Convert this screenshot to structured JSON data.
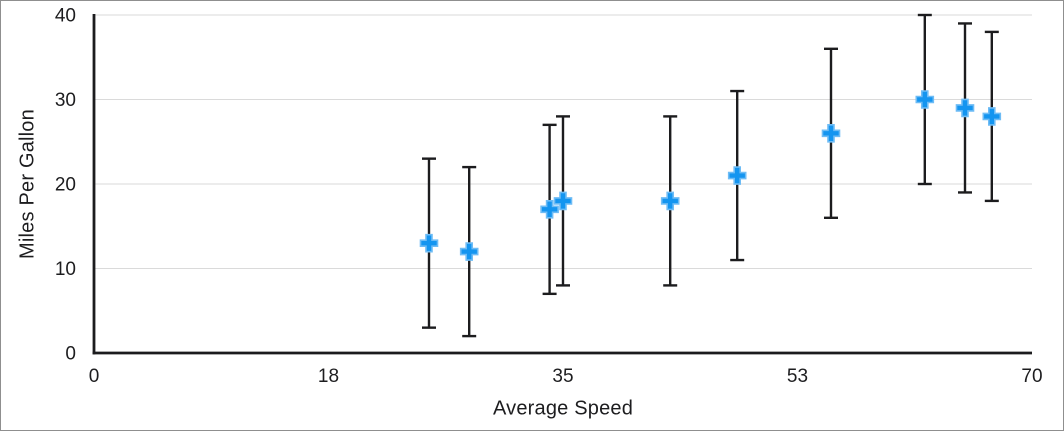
{
  "window": {
    "background": "#ffffff",
    "border_color": "#8f8f8f"
  },
  "chart_data": {
    "type": "scatter",
    "title": "",
    "xlabel": "Average Speed",
    "ylabel": "Miles Per Gallon",
    "xlim": [
      0,
      70
    ],
    "ylim": [
      0,
      40
    ],
    "grid": "horizontal",
    "legend_position": "none",
    "x_ticks": [
      {
        "value": 0,
        "label": "0"
      },
      {
        "value": 17.5,
        "label": "18"
      },
      {
        "value": 35,
        "label": "35"
      },
      {
        "value": 52.5,
        "label": "53"
      },
      {
        "value": 70,
        "label": "70"
      }
    ],
    "y_ticks": [
      {
        "value": 0,
        "label": "0"
      },
      {
        "value": 10,
        "label": "10"
      },
      {
        "value": 20,
        "label": "20"
      },
      {
        "value": 30,
        "label": "30"
      },
      {
        "value": 40,
        "label": "40"
      }
    ],
    "colors": {
      "axis": "#1c1c1e",
      "gridline": "#dadada",
      "text": "#1d1d1f"
    },
    "series": [
      {
        "name": "Miles Per Gallon",
        "marker": {
          "shape": "plus",
          "size": 17,
          "color": "#1495f0",
          "outline_color": "#6ebcf5"
        },
        "error_bars": {
          "axis": "y",
          "type": "fixed",
          "value": 10,
          "direction": "both",
          "color": "#1c1c1e",
          "cap_width": 14
        },
        "points": [
          {
            "x": 25,
            "y": 13
          },
          {
            "x": 28,
            "y": 12
          },
          {
            "x": 34,
            "y": 17
          },
          {
            "x": 35,
            "y": 18
          },
          {
            "x": 43,
            "y": 18
          },
          {
            "x": 48,
            "y": 21
          },
          {
            "x": 55,
            "y": 26
          },
          {
            "x": 62,
            "y": 30
          },
          {
            "x": 65,
            "y": 29
          },
          {
            "x": 67,
            "y": 28
          }
        ]
      }
    ]
  }
}
